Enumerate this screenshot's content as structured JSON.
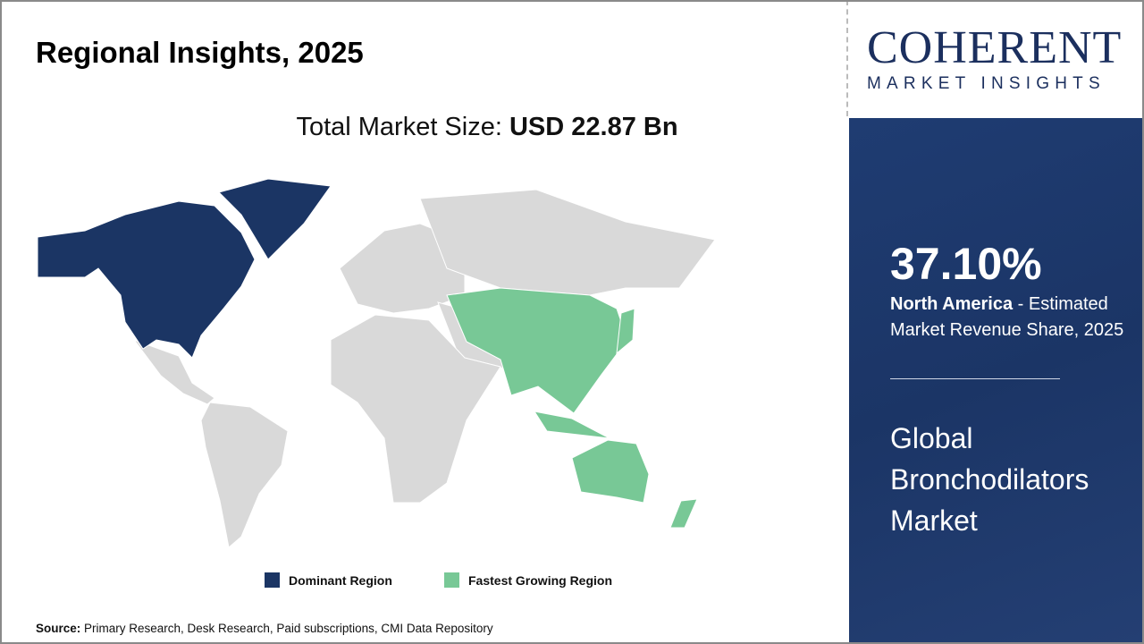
{
  "title": "Regional Insights, 2025",
  "total": {
    "label": "Total Market Size: ",
    "value": "USD 22.87 Bn"
  },
  "legend": [
    {
      "label": "Dominant Region",
      "color": "#1b3564"
    },
    {
      "label": "Fastest Growing Region",
      "color": "#78c896"
    }
  ],
  "map": {
    "dominant_region": "North America",
    "fastest_growing_region": "Asia Pacific",
    "other_color": "#d9d9d9"
  },
  "source": {
    "label": "Source:",
    "text": " Primary Research, Desk Research, Paid subscriptions, CMI Data Repository"
  },
  "logo": {
    "top": "COHERENT",
    "bottom": "MARKET INSIGHTS"
  },
  "panel": {
    "percent": "37.10%",
    "region": "North America",
    "desc": " - Estimated Market Revenue Share, 2025",
    "market": "Global Bronchodilators Market"
  }
}
